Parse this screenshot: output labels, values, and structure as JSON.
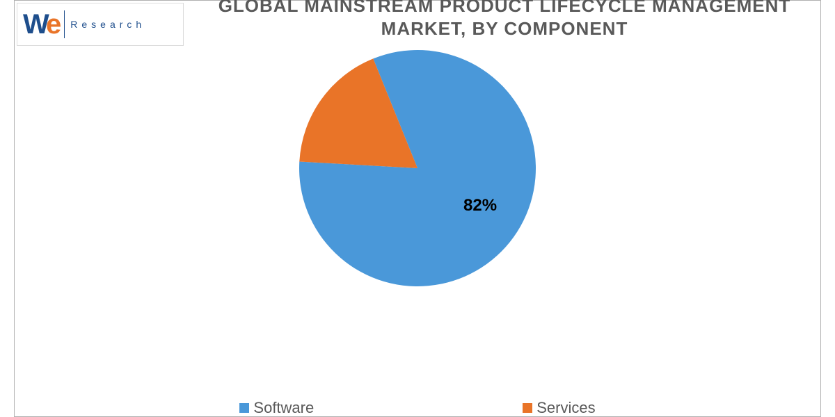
{
  "logo": {
    "mark_left": "W",
    "mark_right": "e",
    "sub": "Research"
  },
  "chart": {
    "type": "pie",
    "title_line1": "GLOBAL MAINSTREAM PRODUCT LIFECYCLE MANAGEMENT",
    "title_line2": "MARKET, BY COMPONENT",
    "title_color": "#595959",
    "title_fontsize": 26,
    "background_color": "#ffffff",
    "border_color": "#b0b0b0",
    "radius": 170,
    "slices": [
      {
        "label": "Software",
        "value": 82,
        "color": "#4a98d9",
        "show_label": true
      },
      {
        "label": "Services",
        "value": 18,
        "color": "#e97428",
        "show_label": false
      }
    ],
    "start_angle_deg": -112,
    "label_fontsize": 24,
    "label_color": "#000000",
    "label_offset_ratio": 0.55
  },
  "legend": {
    "fontsize": 22,
    "color": "#595959",
    "swatch_size": 14,
    "gap": 300,
    "items": [
      {
        "label": "Software",
        "color": "#4a98d9"
      },
      {
        "label": "Services",
        "color": "#e97428"
      }
    ]
  }
}
